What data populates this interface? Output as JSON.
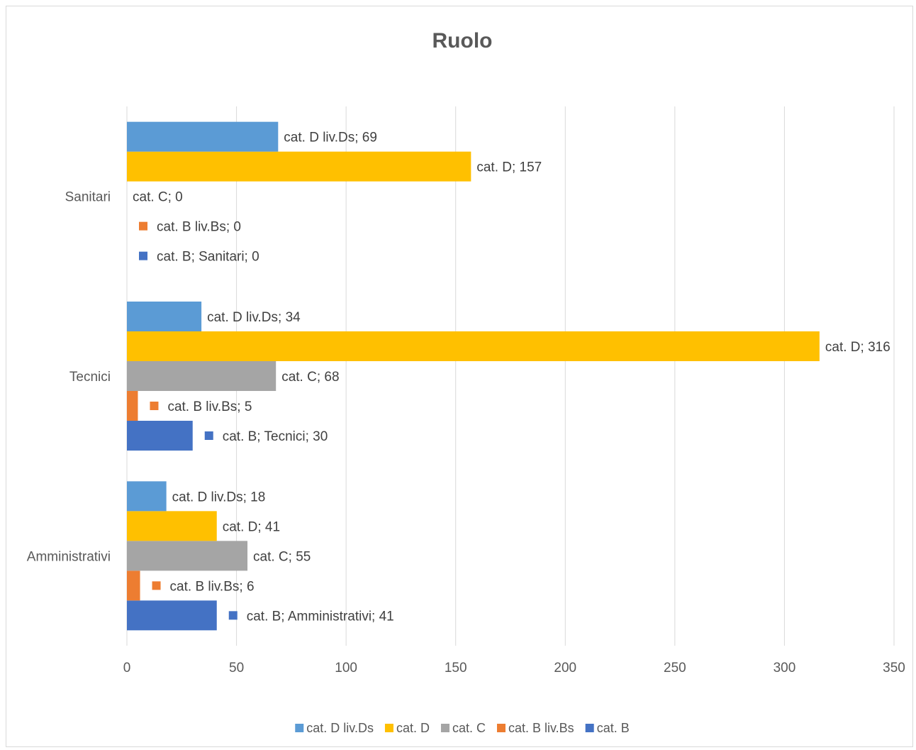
{
  "chart_data": {
    "type": "bar",
    "orientation": "horizontal",
    "title": "Ruolo",
    "categories": [
      "Amministrativi",
      "Tecnici",
      "Sanitari"
    ],
    "x_ticks": [
      "0",
      "50",
      "100",
      "150",
      "200",
      "250",
      "300",
      "350"
    ],
    "xlim": [
      0,
      350
    ],
    "grid": "vertical",
    "legend_position": "bottom",
    "series": [
      {
        "name": "cat. B",
        "color": "#4472c4",
        "values": [
          41,
          30,
          0
        ],
        "labels": [
          "cat. B; Amministrativi; 41",
          "cat. B; Tecnici; 30",
          "cat. B; Sanitari; 0"
        ]
      },
      {
        "name": "cat. B liv.Bs",
        "color": "#ed7d31",
        "values": [
          6,
          5,
          0
        ],
        "labels": [
          "cat. B liv.Bs; 6",
          "cat. B liv.Bs; 5",
          "cat. B liv.Bs; 0"
        ]
      },
      {
        "name": "cat. C",
        "color": "#a5a5a5",
        "values": [
          55,
          68,
          0
        ],
        "labels": [
          "cat. C; 55",
          "cat. C; 68",
          "cat. C; 0"
        ]
      },
      {
        "name": "cat. D",
        "color": "#ffc000",
        "values": [
          41,
          316,
          157
        ],
        "labels": [
          "cat. D; 41",
          "cat. D; 316",
          "cat. D; 157"
        ]
      },
      {
        "name": "cat. D liv.Ds",
        "color": "#5b9bd5",
        "values": [
          18,
          34,
          69
        ],
        "labels": [
          "cat. D liv.Ds; 18",
          "cat. D liv.Ds; 34",
          "cat. D liv.Ds; 69"
        ]
      }
    ],
    "legend_order": [
      "cat. D liv.Ds",
      "cat. D",
      "cat. C",
      "cat. B liv.Bs",
      "cat. B"
    ],
    "label_marker_series": [
      "cat. B",
      "cat. B liv.Bs"
    ]
  }
}
